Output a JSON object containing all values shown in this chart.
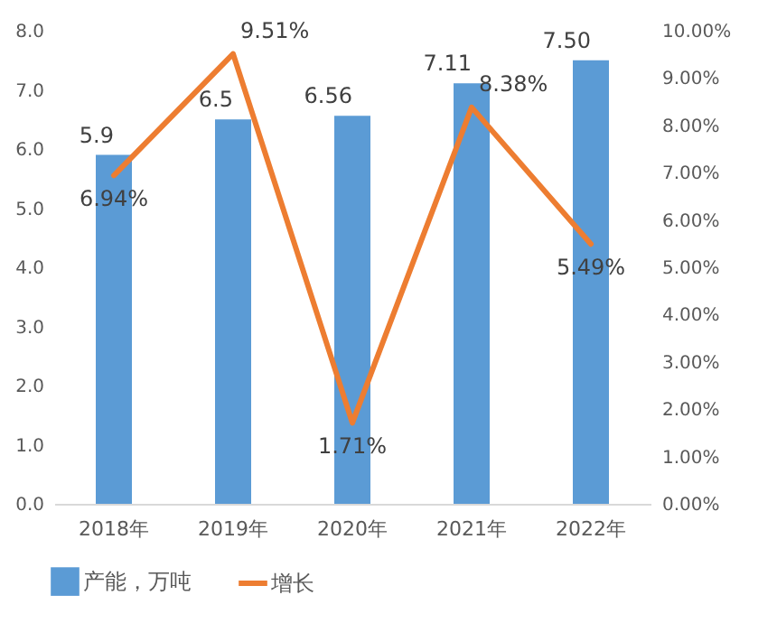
{
  "chart_data": {
    "type": "bar",
    "categories": [
      "2018年",
      "2019年",
      "2020年",
      "2021年",
      "2022年"
    ],
    "series": [
      {
        "name": "产能，万吨",
        "color": "#5b9bd5",
        "values": [
          5.9,
          6.5,
          6.56,
          7.11,
          7.5
        ],
        "value_labels": [
          "5.9",
          "6.5",
          "6.56",
          "7.11",
          "7.50"
        ]
      },
      {
        "name": "增长",
        "type": "line",
        "axis": "y2",
        "color": "#ed7d31",
        "values": [
          6.94,
          9.51,
          1.71,
          8.38,
          5.49
        ],
        "value_labels": [
          "6.94%",
          "9.51%",
          "1.71%",
          "8.38%",
          "5.49%"
        ]
      }
    ],
    "ylim": [
      0,
      8
    ],
    "yticks": [
      {
        "value": 0,
        "label": "0.0"
      },
      {
        "value": 1,
        "label": "1.0"
      },
      {
        "value": 2,
        "label": "2.0"
      },
      {
        "value": 3,
        "label": "3.0"
      },
      {
        "value": 4,
        "label": "4.0"
      },
      {
        "value": 5,
        "label": "5.0"
      },
      {
        "value": 6,
        "label": "6.0"
      },
      {
        "value": 7,
        "label": "7.0"
      },
      {
        "value": 8,
        "label": "8.0"
      }
    ],
    "y2lim": [
      0,
      10
    ],
    "y2ticks": [
      {
        "value": 0,
        "label": "0.00%"
      },
      {
        "value": 1,
        "label": "1.00%"
      },
      {
        "value": 2,
        "label": "2.00%"
      },
      {
        "value": 3,
        "label": "3.00%"
      },
      {
        "value": 4,
        "label": "4.00%"
      },
      {
        "value": 5,
        "label": "5.00%"
      },
      {
        "value": 6,
        "label": "6.00%"
      },
      {
        "value": 7,
        "label": "7.00%"
      },
      {
        "value": 8,
        "label": "8.00%"
      },
      {
        "value": 9,
        "label": "9.00%"
      },
      {
        "value": 10,
        "label": "10.00%"
      }
    ],
    "legend": "bottom"
  }
}
